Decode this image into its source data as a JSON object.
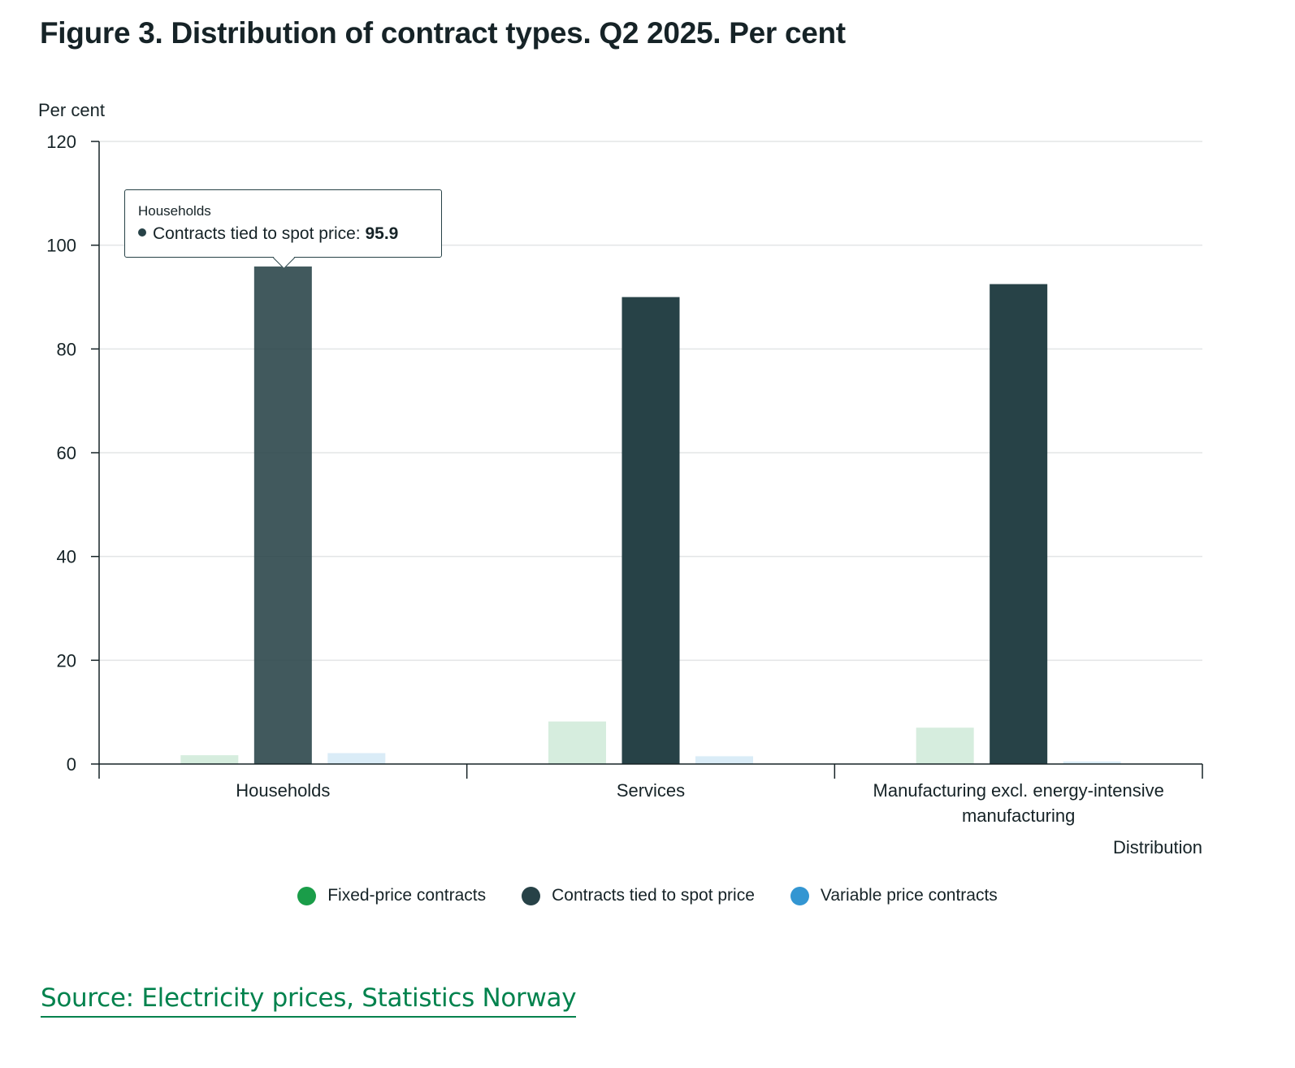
{
  "title": "Figure 3. Distribution of contract types. Q2 2025. Per cent",
  "source_link": "Source: Electricity prices, Statistics Norway",
  "colors": {
    "fixed": "#1a9d49",
    "spot": "#274247",
    "variable": "#3396d2",
    "link": "#00824d"
  },
  "chart_data": {
    "type": "bar",
    "categories": [
      "Households",
      "Services",
      "Manufacturing excl. energy-intensive manufacturing"
    ],
    "series": [
      {
        "name": "Fixed-price contracts",
        "values": [
          1.7,
          8.2,
          7.0
        ],
        "color": "#1a9d49"
      },
      {
        "name": "Contracts tied to spot price",
        "values": [
          95.9,
          90.0,
          92.5
        ],
        "color": "#274247"
      },
      {
        "name": "Variable price contracts",
        "values": [
          2.1,
          1.5,
          0.5
        ],
        "color": "#3396d2"
      }
    ],
    "ylabel": "Per cent",
    "xlabel": "Distribution",
    "ylim": [
      0,
      120
    ],
    "yticks": [
      0,
      20,
      40,
      60,
      80,
      100,
      120
    ],
    "grid": true,
    "legend_position": "bottom",
    "highlight": {
      "category": "Households",
      "series": "Contracts tied to spot price"
    },
    "tooltip": {
      "title": "Households",
      "series": "Contracts tied to spot price",
      "label": "Contracts tied to spot price: ",
      "value": "95.9"
    }
  }
}
